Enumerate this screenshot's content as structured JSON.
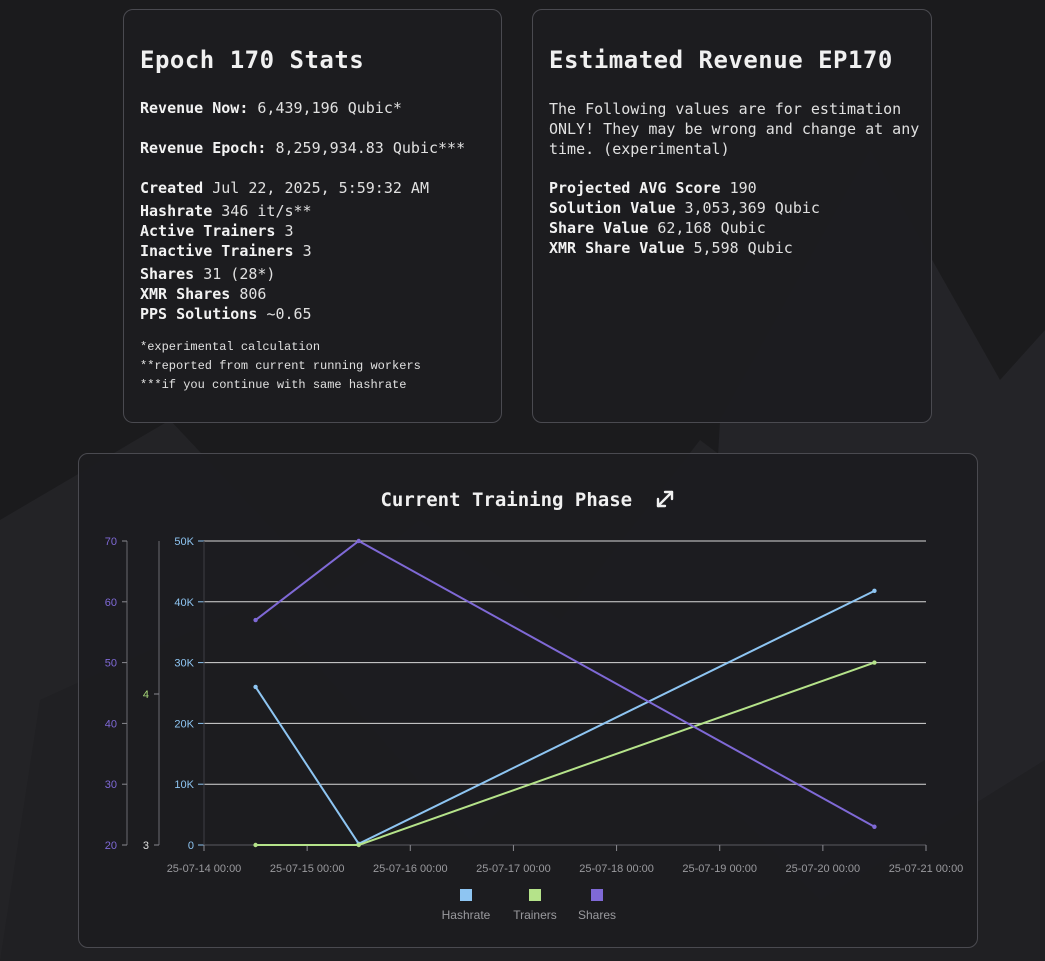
{
  "stats": {
    "title": "Epoch 170 Stats",
    "revenue_now_label": "Revenue Now:",
    "revenue_now_value": "6,439,196 Qubic*",
    "revenue_epoch_label": "Revenue Epoch:",
    "revenue_epoch_value": "8,259,934.83 Qubic***",
    "created_label": "Created",
    "created_value": "Jul 22, 2025, 5:59:32 AM",
    "hashrate_label": "Hashrate",
    "hashrate_value": "346 it/s**",
    "active_trainers_label": "Active Trainers",
    "active_trainers_value": "3",
    "inactive_trainers_label": "Inactive Trainers",
    "inactive_trainers_value": "3",
    "shares_label": "Shares",
    "shares_value": "31 (28*)",
    "xmr_shares_label": "XMR Shares",
    "xmr_shares_value": "806",
    "pps_label": "PPS Solutions",
    "pps_value": "~0.65",
    "notes": [
      "*experimental calculation",
      "**reported from current running workers",
      "***if you continue with same hashrate"
    ]
  },
  "revenue": {
    "title": "Estimated Revenue EP170",
    "disclaimer": "The Following values are for estimation ONLY! They may be wrong and change at any time. (experimental)",
    "projected_label": "Projected AVG Score",
    "projected_value": "190",
    "solution_label": "Solution Value",
    "solution_value": "3,053,369 Qubic",
    "share_label": "Share Value",
    "share_value": "62,168 Qubic",
    "xmr_share_label": "XMR Share Value",
    "xmr_share_value": "5,598 Qubic"
  },
  "chart_panel": {
    "title": "Current Training Phase",
    "expand_icon": "expand-arrows-icon"
  },
  "chart_data": {
    "type": "line",
    "title": "Current Training Phase",
    "x_ticks": [
      "25-07-14 00:00",
      "25-07-15 00:00",
      "25-07-16 00:00",
      "25-07-17 00:00",
      "25-07-18 00:00",
      "25-07-19 00:00",
      "25-07-20 00:00",
      "25-07-21 00:00"
    ],
    "x_range": [
      "25-07-14 00:00",
      "25-07-21 00:00"
    ],
    "x": [
      "25-07-14 12:00",
      "25-07-15 12:00",
      "25-07-20 12:00"
    ],
    "axes": {
      "hashrate": {
        "ticks": [
          "0",
          "10K",
          "20K",
          "30K",
          "40K",
          "50K"
        ],
        "range": [
          0,
          50000
        ],
        "color": "#8ec5f2"
      },
      "trainers": {
        "ticks": [
          "3",
          "4"
        ],
        "range": [
          3,
          4
        ],
        "color": "#a8d97a"
      },
      "shares": {
        "ticks": [
          "20",
          "30",
          "40",
          "50",
          "60",
          "70"
        ],
        "range": [
          20,
          70
        ],
        "color": "#7f69d6"
      }
    },
    "series": [
      {
        "name": "Hashrate",
        "axis": "hashrate",
        "color": "#8ec5f2",
        "values": [
          26000,
          200,
          41800
        ]
      },
      {
        "name": "Trainers",
        "axis": "trainers",
        "color": "#b5e38a",
        "values": [
          3,
          3,
          3.6
        ]
      },
      {
        "name": "Shares",
        "axis": "shares",
        "color": "#7f69d6",
        "values": [
          57,
          70,
          23
        ]
      }
    ],
    "grid": true,
    "legend_position": "bottom"
  }
}
